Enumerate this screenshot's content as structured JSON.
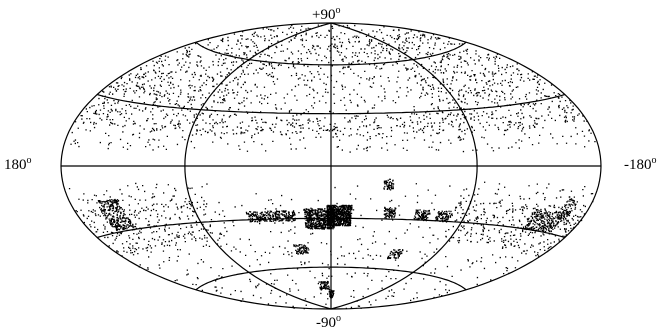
{
  "map": {
    "projection": "Hammer-Aitoff (all-sky)",
    "labels": {
      "top": "+90",
      "bottom": "-90",
      "left": "180",
      "right": "-180",
      "degree_mark": "o"
    },
    "latitude_lines_deg": [
      60,
      30,
      0,
      -30,
      -60
    ],
    "longitude_lines_deg": [
      90,
      0,
      -90
    ],
    "colors": {
      "outline": "#000000",
      "points": "#000000",
      "background": "#ffffff"
    },
    "point_density": "scattered field sources; denser survey patches in the southern hemisphere"
  }
}
